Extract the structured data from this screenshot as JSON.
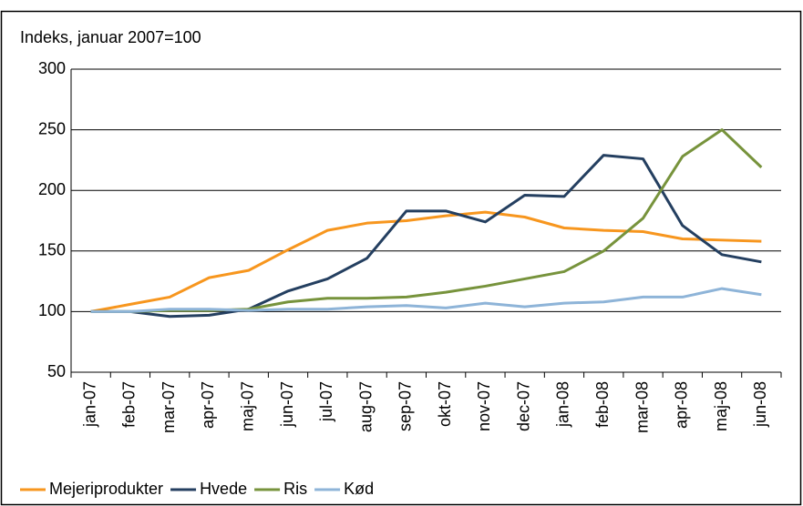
{
  "chart_data": {
    "type": "line",
    "y_label": "Indeks, januar 2007=100",
    "categories": [
      "jan-07",
      "feb-07",
      "mar-07",
      "apr-07",
      "maj-07",
      "jun-07",
      "jul-07",
      "aug-07",
      "sep-07",
      "okt-07",
      "nov-07",
      "dec-07",
      "jan-08",
      "feb-08",
      "mar-08",
      "apr-08",
      "maj-08",
      "jun-08"
    ],
    "series": [
      {
        "name": "Mejeriprodukter",
        "color": "#f7961e",
        "values": [
          100,
          106,
          112,
          128,
          134,
          151,
          167,
          173,
          175,
          179,
          182,
          178,
          169,
          167,
          166,
          160,
          159,
          158
        ]
      },
      {
        "name": "Hvede",
        "color": "#243f60",
        "values": [
          100,
          100,
          96,
          97,
          102,
          117,
          127,
          144,
          183,
          183,
          174,
          196,
          195,
          229,
          226,
          171,
          147,
          141
        ]
      },
      {
        "name": "Ris",
        "color": "#77933c",
        "values": [
          100,
          100,
          101,
          101,
          102,
          108,
          111,
          111,
          112,
          116,
          121,
          127,
          133,
          150,
          177,
          228,
          250,
          219
        ]
      },
      {
        "name": "Kød",
        "color": "#8eb4d8",
        "values": [
          100,
          100,
          102,
          102,
          101,
          102,
          102,
          104,
          105,
          103,
          107,
          104,
          107,
          108,
          112,
          112,
          119,
          114
        ]
      }
    ],
    "ylim": [
      50,
      300
    ],
    "yticks": [
      50,
      100,
      150,
      200,
      250,
      300
    ],
    "grid": true
  }
}
